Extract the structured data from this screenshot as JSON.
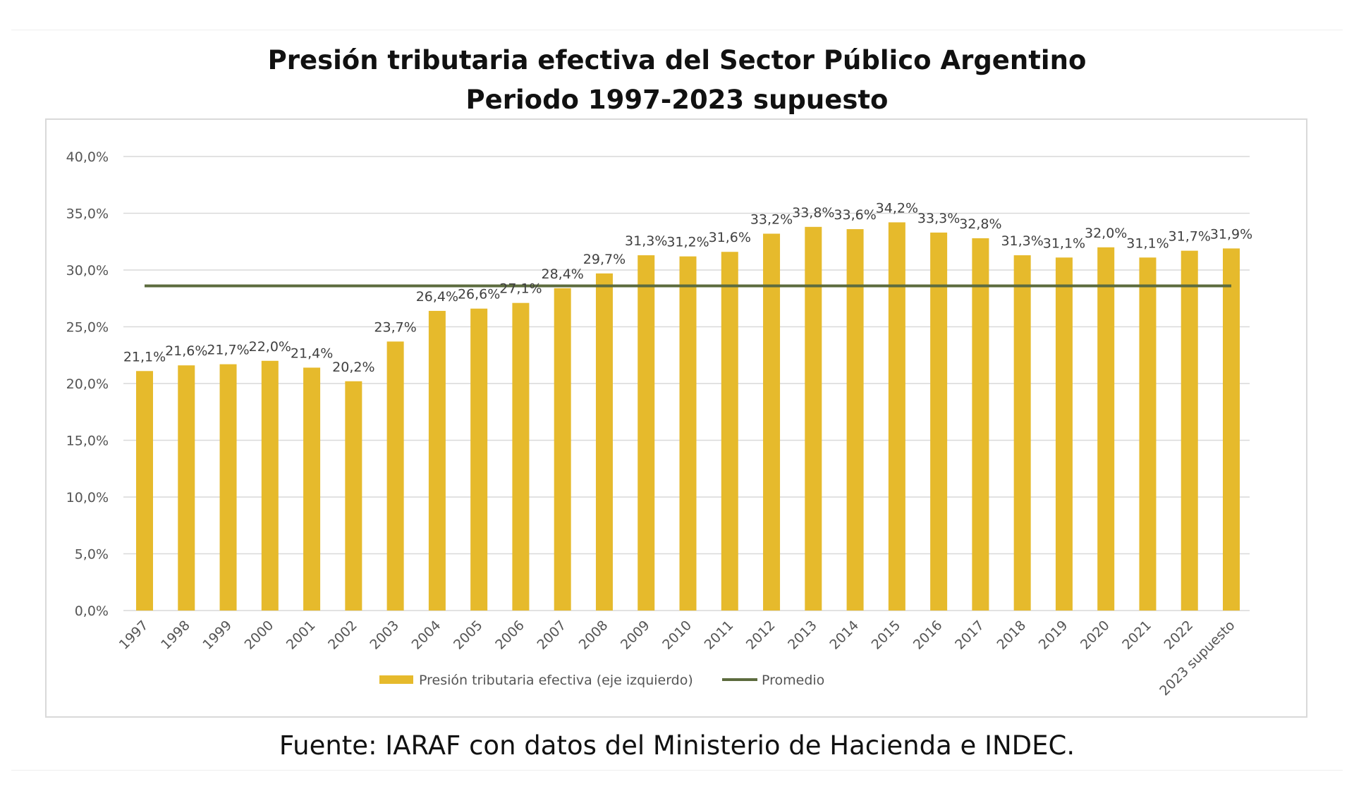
{
  "header": {
    "title_line1": "Presión tributaria efectiva del Sector Público Argentino",
    "title_line2": "Periodo 1997-2023 supuesto"
  },
  "footer": {
    "source": "Fuente: IARAF con datos del Ministerio de Hacienda e INDEC."
  },
  "colors": {
    "bar": "#E6BA2C",
    "average_line": "#5C6B3E",
    "grid": "#d9d9d9",
    "text": "#555555"
  },
  "chart_data": {
    "type": "bar",
    "title": "Presión tributaria efectiva del Sector Público Argentino Periodo 1997-2023 supuesto",
    "categories": [
      "1997",
      "1998",
      "1999",
      "2000",
      "2001",
      "2002",
      "2003",
      "2004",
      "2005",
      "2006",
      "2007",
      "2008",
      "2009",
      "2010",
      "2011",
      "2012",
      "2013",
      "2014",
      "2015",
      "2016",
      "2017",
      "2018",
      "2019",
      "2020",
      "2021",
      "2022",
      "2023 supuesto"
    ],
    "series": [
      {
        "name": "Presión tributaria efectiva (eje izquierdo)",
        "type": "bar",
        "values": [
          21.1,
          21.6,
          21.7,
          22.0,
          21.4,
          20.2,
          23.7,
          26.4,
          26.6,
          27.1,
          28.4,
          29.7,
          31.3,
          31.2,
          31.6,
          33.2,
          33.8,
          33.6,
          34.2,
          33.3,
          32.8,
          31.3,
          31.1,
          32.0,
          31.1,
          31.7,
          31.9
        ],
        "labels": [
          "21,1%",
          "21,6%",
          "21,7%",
          "22,0%",
          "21,4%",
          "20,2%",
          "23,7%",
          "26,4%",
          "26,6%",
          "27,1%",
          "28,4%",
          "29,7%",
          "31,3%",
          "31,2%",
          "31,6%",
          "33,2%",
          "33,8%",
          "33,6%",
          "34,2%",
          "33,3%",
          "32,8%",
          "31,3%",
          "31,1%",
          "32,0%",
          "31,1%",
          "31,7%",
          "31,9%"
        ]
      },
      {
        "name": "Promedio",
        "type": "line",
        "value": 28.6
      }
    ],
    "ylim": [
      0,
      40
    ],
    "yticks": [
      0,
      5,
      10,
      15,
      20,
      25,
      30,
      35,
      40
    ],
    "ytick_labels": [
      "0,0%",
      "5,0%",
      "10,0%",
      "15,0%",
      "20,0%",
      "25,0%",
      "30,0%",
      "35,0%",
      "40,0%"
    ],
    "grid": true,
    "legend_position": "bottom"
  }
}
